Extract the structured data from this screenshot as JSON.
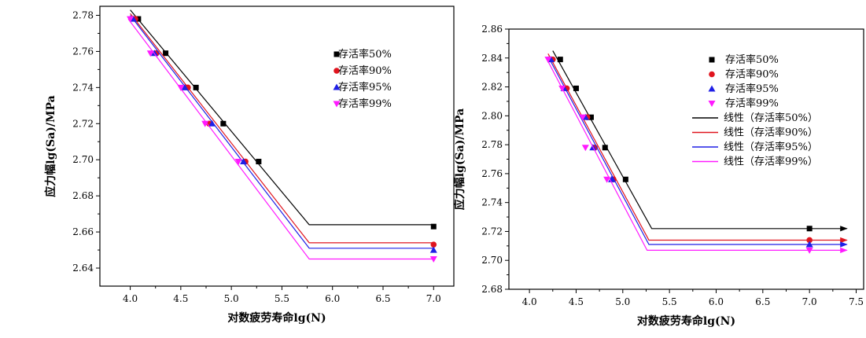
{
  "chart_data": [
    {
      "type": "line",
      "xlabel": "对数疲劳寿命lg(N)",
      "ylabel": "应力幅lg(Sa)/MPa",
      "xlim": [
        3.7,
        7.2
      ],
      "ylim": [
        2.63,
        2.785
      ],
      "xticks": [
        "4.0",
        "4.5",
        "5.0",
        "5.5",
        "6.0",
        "6.5",
        "7.0"
      ],
      "yticks": [
        "2.64",
        "2.66",
        "2.68",
        "2.70",
        "2.72",
        "2.74",
        "2.76",
        "2.78"
      ],
      "legend_position": "top-right",
      "series": [
        {
          "name": "存活率50%",
          "color": "#000000",
          "marker": "square",
          "points": [
            [
              4.08,
              2.778
            ],
            [
              4.35,
              2.759
            ],
            [
              4.65,
              2.74
            ],
            [
              4.92,
              2.72
            ],
            [
              5.27,
              2.699
            ],
            [
              7.0,
              2.663
            ]
          ],
          "fit": [
            [
              4.0,
              2.783
            ],
            [
              5.77,
              2.664
            ],
            [
              7.0,
              2.664
            ]
          ]
        },
        {
          "name": "存活率90%",
          "color": "#e0141e",
          "marker": "circle",
          "points": [
            [
              4.05,
              2.778
            ],
            [
              4.26,
              2.759
            ],
            [
              4.57,
              2.74
            ],
            [
              4.78,
              2.72
            ],
            [
              5.14,
              2.699
            ],
            [
              7.0,
              2.653
            ]
          ],
          "fit": [
            [
              4.0,
              2.781
            ],
            [
              5.77,
              2.654
            ],
            [
              7.0,
              2.654
            ]
          ]
        },
        {
          "name": "存活率95%",
          "color": "#1f1fe6",
          "marker": "triangle-up",
          "points": [
            [
              4.03,
              2.778
            ],
            [
              4.24,
              2.759
            ],
            [
              4.54,
              2.74
            ],
            [
              4.81,
              2.72
            ],
            [
              5.12,
              2.699
            ],
            [
              7.0,
              2.65
            ]
          ],
          "fit": [
            [
              4.0,
              2.78
            ],
            [
              5.77,
              2.651
            ],
            [
              7.0,
              2.651
            ]
          ]
        },
        {
          "name": "存活率99%",
          "color": "#ff1aff",
          "marker": "triangle-down",
          "points": [
            [
              4.0,
              2.778
            ],
            [
              4.2,
              2.759
            ],
            [
              4.5,
              2.74
            ],
            [
              4.74,
              2.72
            ],
            [
              5.07,
              2.699
            ],
            [
              7.0,
              2.645
            ]
          ],
          "fit": [
            [
              3.98,
              2.778
            ],
            [
              5.77,
              2.645
            ],
            [
              7.0,
              2.645
            ]
          ]
        }
      ]
    },
    {
      "type": "line",
      "xlabel": "对数疲劳寿命lg(N)",
      "ylabel": "应力幅lg(Sa)/MPa",
      "xlim": [
        3.78,
        7.58
      ],
      "ylim": [
        2.68,
        2.86
      ],
      "xticks": [
        "4.0",
        "4.5",
        "5.0",
        "5.5",
        "6.0",
        "6.5",
        "7.0",
        "7.5"
      ],
      "yticks": [
        "2.68",
        "2.70",
        "2.72",
        "2.74",
        "2.76",
        "2.78",
        "2.80",
        "2.82",
        "2.84",
        "2.86"
      ],
      "legend_position": "top-right",
      "series": [
        {
          "name": "存活率50%",
          "color": "#000000",
          "marker": "square",
          "points": [
            [
              4.33,
              2.839
            ],
            [
              4.5,
              2.819
            ],
            [
              4.66,
              2.799
            ],
            [
              4.81,
              2.778
            ],
            [
              5.03,
              2.756
            ],
            [
              7.0,
              2.722
            ]
          ],
          "fit": [
            [
              4.25,
              2.845
            ],
            [
              5.31,
              2.722
            ],
            [
              7.4,
              2.722
            ]
          ]
        },
        {
          "name": "存活率90%",
          "color": "#e0141e",
          "marker": "circle",
          "points": [
            [
              4.25,
              2.839
            ],
            [
              4.4,
              2.819
            ],
            [
              4.62,
              2.799
            ],
            [
              4.7,
              2.778
            ],
            [
              4.9,
              2.756
            ],
            [
              7.0,
              2.714
            ]
          ],
          "fit": [
            [
              4.2,
              2.843
            ],
            [
              5.28,
              2.714
            ],
            [
              7.4,
              2.714
            ]
          ]
        },
        {
          "name": "存活率95%",
          "color": "#1f1fe6",
          "marker": "triangle-up",
          "points": [
            [
              4.23,
              2.839
            ],
            [
              4.37,
              2.819
            ],
            [
              4.6,
              2.799
            ],
            [
              4.68,
              2.778
            ],
            [
              4.88,
              2.756
            ],
            [
              7.0,
              2.711
            ]
          ],
          "fit": [
            [
              4.2,
              2.841
            ],
            [
              5.28,
              2.711
            ],
            [
              7.4,
              2.711
            ]
          ]
        },
        {
          "name": "存活率99%",
          "color": "#ff1aff",
          "marker": "triangle-down",
          "points": [
            [
              4.2,
              2.839
            ],
            [
              4.35,
              2.819
            ],
            [
              4.57,
              2.799
            ],
            [
              4.6,
              2.778
            ],
            [
              4.83,
              2.756
            ],
            [
              7.0,
              2.707
            ]
          ],
          "fit": [
            [
              4.18,
              2.84
            ],
            [
              5.26,
              2.707
            ],
            [
              7.4,
              2.707
            ]
          ]
        }
      ],
      "fit_legend": [
        "线性（存活率50%）",
        "线性（存活率90%）",
        "线性（存活率95%）",
        "线性（存活率99%）"
      ]
    }
  ]
}
